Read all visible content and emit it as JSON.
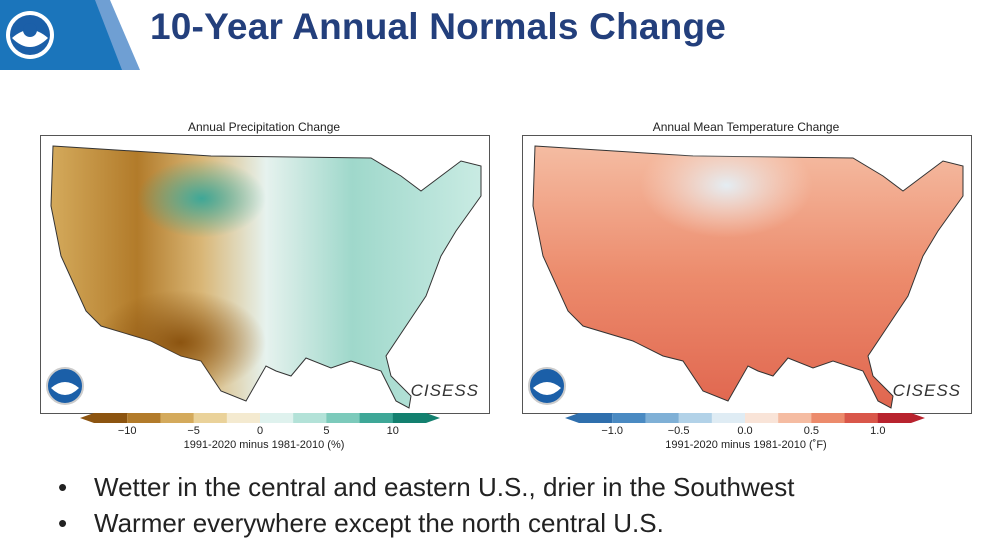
{
  "slide": {
    "title": "10-Year Annual Normals Change",
    "logo": "noaa-logo"
  },
  "maps": [
    {
      "title": "Annual Precipitation Change",
      "colorbar_label": "1991-2020 minus 1981-2010 (%)",
      "ticks": [
        "−10",
        "−5",
        "0",
        "5",
        "10"
      ],
      "colors": [
        "#8c5410",
        "#b27b2a",
        "#d4aa5c",
        "#ead29a",
        "#f4ead0",
        "#dff2ee",
        "#b3e2d8",
        "#7ccabb",
        "#3ea797",
        "#13806f"
      ],
      "branding": "CISESS"
    },
    {
      "title": "Annual Mean Temperature Change",
      "colorbar_label": "1991-2020 minus 1981-2010 (˚F)",
      "ticks": [
        "−1.0",
        "−0.5",
        "0.0",
        "0.5",
        "1.0"
      ],
      "colors": [
        "#2f6fad",
        "#4a8ac2",
        "#7fb0d6",
        "#b2d2e8",
        "#dfecf4",
        "#f9e4d8",
        "#f5bca2",
        "#ec8b6c",
        "#d9574a",
        "#b8232e"
      ],
      "branding": "CISESS"
    }
  ],
  "bullets": [
    "Wetter in the central and eastern U.S., drier in the Southwest",
    "Warmer everywhere except the north central U.S."
  ]
}
